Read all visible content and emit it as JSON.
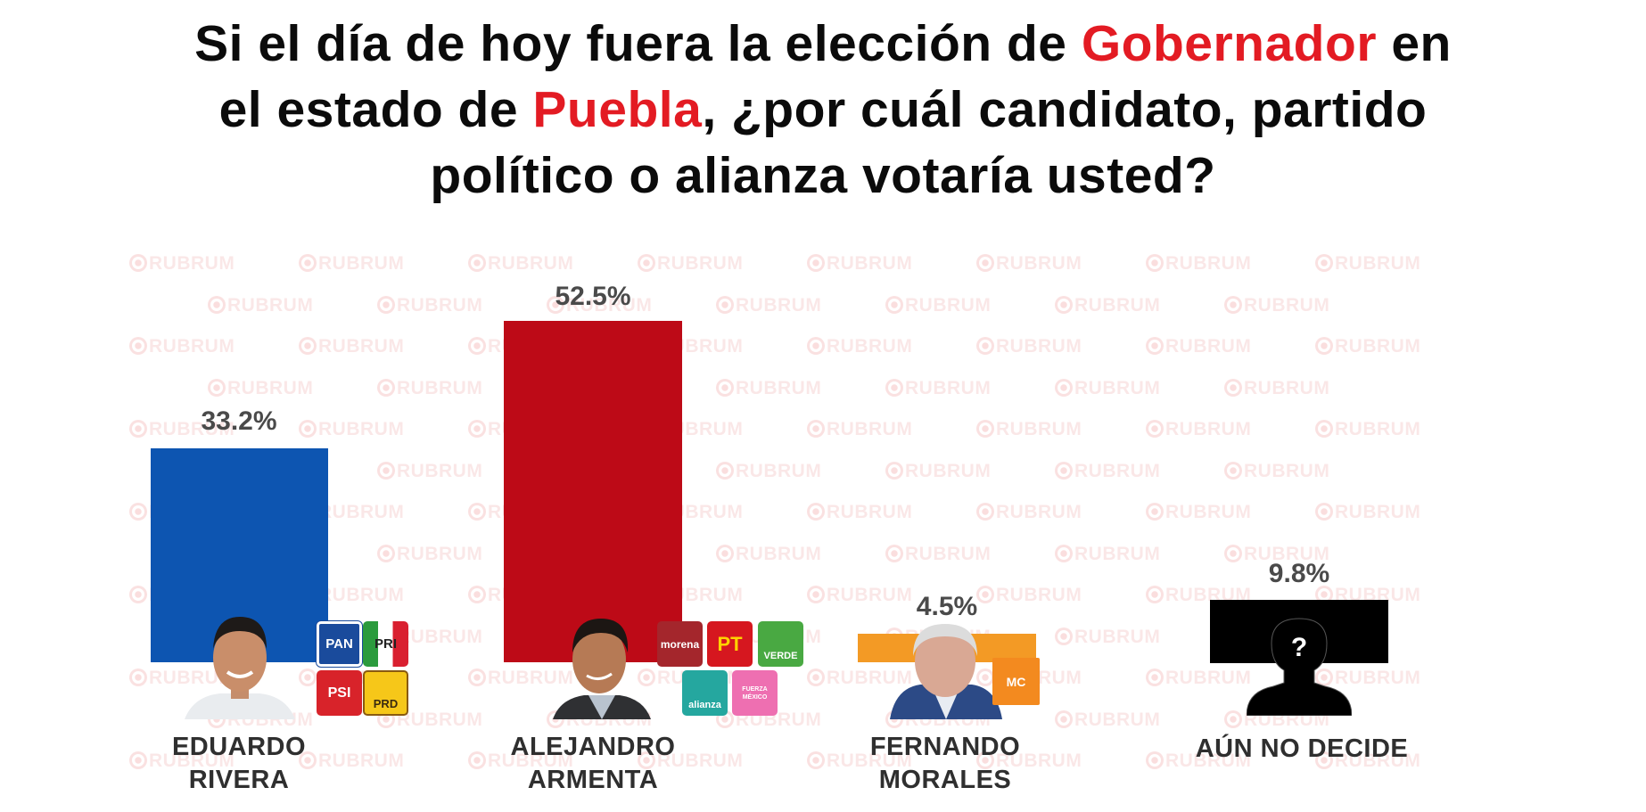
{
  "title": {
    "line1_pre": "Si el día de hoy fuera la elección de ",
    "line1_highlight": "Gobernador",
    "line1_post": " en",
    "line2_pre": "el estado de ",
    "line2_highlight": "Puebla",
    "line2_post": ", ¿por cuál candidato, partido",
    "line3": "político o alianza votaría usted?"
  },
  "watermark": "RUBRUM",
  "colors": {
    "highlight": "#e31b23",
    "eduardo": "#0d55b1",
    "alejandro": "#bd0a17",
    "fernando": "#f39a25",
    "undecided": "#000000"
  },
  "candidates": [
    {
      "name_line1": "EDUARDO",
      "name_line2": "RIVERA",
      "value_label": "33.2%",
      "parties": [
        "PAN",
        "PRI",
        "PSI",
        "PRD"
      ]
    },
    {
      "name_line1": "ALEJANDRO",
      "name_line2": "ARMENTA",
      "value_label": "52.5%",
      "parties": [
        "morena",
        "PT",
        "VERDE",
        "alianza",
        "FUERZA MÉXICO"
      ]
    },
    {
      "name_line1": "FERNANDO",
      "name_line2": "MORALES",
      "value_label": "4.5%",
      "parties": [
        "MC"
      ]
    },
    {
      "name_line1": "AÚN NO DECIDE",
      "name_line2": "",
      "value_label": "9.8%",
      "parties": []
    }
  ],
  "icons": {
    "unknown_person": "?"
  },
  "chart_data": {
    "type": "bar",
    "title": "Si el día de hoy fuera la elección de Gobernador en el estado de Puebla, ¿por cuál candidato, partido político o alianza votaría usted?",
    "categories": [
      "EDUARDO RIVERA",
      "ALEJANDRO ARMENTA",
      "FERNANDO MORALES",
      "AÚN NO DECIDE"
    ],
    "values": [
      33.2,
      52.5,
      4.5,
      9.8
    ],
    "colors": [
      "#0d55b1",
      "#bd0a17",
      "#f39a25",
      "#000000"
    ],
    "xlabel": "",
    "ylabel": "",
    "unit": "%",
    "grid": false,
    "legend": "none",
    "data_labels": true
  }
}
